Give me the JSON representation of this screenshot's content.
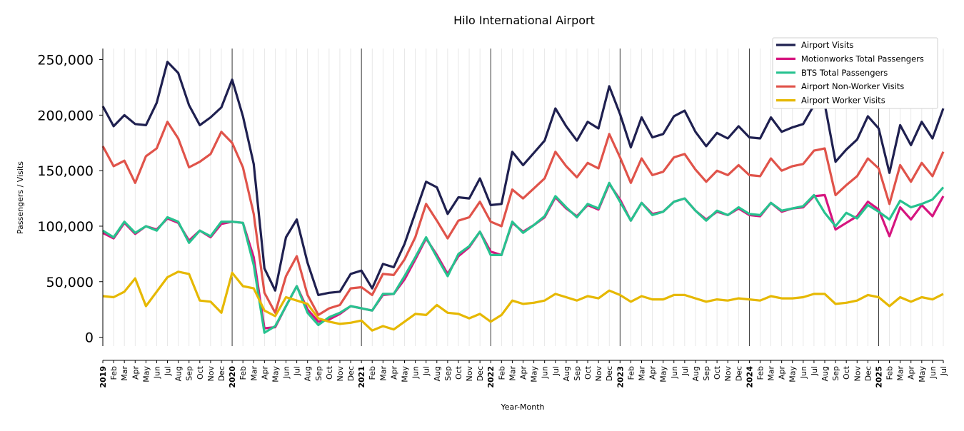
{
  "chart_data": {
    "type": "line",
    "title": "Hilo International Airport",
    "xlabel": "Year-Month",
    "ylabel": "Passengers / Visits",
    "ylim": [
      -8000,
      260000
    ],
    "yticks": [
      0,
      50000,
      100000,
      150000,
      200000,
      250000
    ],
    "ytick_labels": [
      "0",
      "50,000",
      "100,000",
      "150,000",
      "200,000",
      "250,000"
    ],
    "start": {
      "year": 2019,
      "month": 1
    },
    "month_labels": [
      "Jan",
      "Feb",
      "Mar",
      "Apr",
      "May",
      "Jun",
      "Jul",
      "Aug",
      "Sep",
      "Oct",
      "Nov",
      "Dec"
    ],
    "year_labels": [
      "2019",
      "2020",
      "2021",
      "2022",
      "2023",
      "2024",
      "2025"
    ],
    "grid": "vertical monthly lines, dark lines at each January",
    "legend_position": "top-right",
    "series": [
      {
        "name": "Airport Visits",
        "color": "#1f2050",
        "values": [
          208000,
          190000,
          200000,
          192000,
          191000,
          211000,
          248000,
          238000,
          209000,
          191000,
          198000,
          207000,
          232000,
          199000,
          156000,
          62000,
          42000,
          90000,
          106000,
          67000,
          38000,
          40000,
          41000,
          57000,
          60000,
          44000,
          66000,
          63000,
          84000,
          112000,
          140000,
          135000,
          111000,
          126000,
          125000,
          143000,
          119000,
          120000,
          167000,
          155000,
          166000,
          177000,
          206000,
          190000,
          177000,
          194000,
          188000,
          226000,
          201000,
          171000,
          198000,
          180000,
          183000,
          199000,
          204000,
          185000,
          172000,
          184000,
          179000,
          190000,
          180000,
          179000,
          198000,
          185000,
          189000,
          192000,
          209000,
          210000,
          158000,
          169000,
          178000,
          199000,
          188000,
          148000,
          191000,
          173000,
          194000,
          179000,
          206000
        ]
      },
      {
        "name": "Motionworks Total Passengers",
        "color": "#d6157f",
        "values": [
          94000,
          89000,
          103000,
          93000,
          100000,
          97000,
          107000,
          103000,
          87000,
          96000,
          90000,
          102000,
          104000,
          103000,
          72000,
          8000,
          9000,
          28000,
          46000,
          25000,
          14000,
          16000,
          21000,
          28000,
          26000,
          24000,
          38000,
          39000,
          52000,
          70000,
          89000,
          74000,
          57000,
          73000,
          81000,
          95000,
          77000,
          74000,
          103000,
          95000,
          101000,
          108000,
          126000,
          116000,
          109000,
          119000,
          115000,
          138000,
          124000,
          105000,
          121000,
          111000,
          113000,
          122000,
          125000,
          114000,
          106000,
          113000,
          110000,
          116000,
          110000,
          109000,
          121000,
          113000,
          116000,
          117000,
          127000,
          128000,
          97000,
          103000,
          109000,
          122000,
          115000,
          91000,
          117000,
          106000,
          119000,
          109000,
          127000
        ]
      },
      {
        "name": "BTS Total Passengers",
        "color": "#27c28f",
        "values": [
          96000,
          90000,
          104000,
          94000,
          100000,
          96000,
          108000,
          104000,
          85000,
          96000,
          91000,
          104000,
          104000,
          103000,
          65000,
          4000,
          10000,
          28000,
          46000,
          22000,
          11000,
          18000,
          22000,
          28000,
          26000,
          24000,
          39000,
          39000,
          55000,
          72000,
          90000,
          72000,
          55000,
          75000,
          82000,
          95000,
          74000,
          74000,
          104000,
          94000,
          101000,
          109000,
          127000,
          117000,
          108000,
          120000,
          116000,
          139000,
          122000,
          105000,
          121000,
          110000,
          113000,
          122000,
          125000,
          114000,
          105000,
          114000,
          110000,
          117000,
          111000,
          110000,
          121000,
          114000,
          116000,
          118000,
          128000,
          112000,
          100000,
          112000,
          107000,
          119000,
          113000,
          106000,
          123000,
          117000,
          120000,
          124000,
          135000
        ]
      },
      {
        "name": "Airport Non-Worker Visits",
        "color": "#e0534a",
        "values": [
          172000,
          154000,
          159000,
          139000,
          163000,
          170000,
          194000,
          179000,
          153000,
          158000,
          165000,
          185000,
          175000,
          153000,
          111000,
          40000,
          22000,
          55000,
          73000,
          38000,
          20000,
          26000,
          29000,
          44000,
          45000,
          38000,
          57000,
          56000,
          70000,
          90000,
          120000,
          105000,
          89000,
          105000,
          108000,
          122000,
          104000,
          100000,
          133000,
          125000,
          134000,
          143000,
          167000,
          154000,
          144000,
          157000,
          152000,
          183000,
          162000,
          139000,
          161000,
          146000,
          149000,
          162000,
          165000,
          151000,
          140000,
          150000,
          146000,
          155000,
          146000,
          145000,
          161000,
          150000,
          154000,
          156000,
          168000,
          170000,
          128000,
          137000,
          145000,
          161000,
          152000,
          120000,
          155000,
          140000,
          157000,
          145000,
          167000
        ]
      },
      {
        "name": "Airport Worker Visits",
        "color": "#e6b800",
        "values": [
          37000,
          36000,
          41000,
          53000,
          28000,
          41000,
          54000,
          59000,
          57000,
          33000,
          32000,
          22000,
          58000,
          46000,
          44000,
          24000,
          19000,
          36000,
          33000,
          30000,
          17000,
          14000,
          12000,
          13000,
          15000,
          6000,
          10000,
          7000,
          14000,
          21000,
          20000,
          29000,
          22000,
          21000,
          17000,
          21000,
          14000,
          20000,
          33000,
          30000,
          31000,
          33000,
          39000,
          36000,
          33000,
          37000,
          35000,
          42000,
          38000,
          32000,
          37000,
          34000,
          34000,
          38000,
          38000,
          35000,
          32000,
          34000,
          33000,
          35000,
          34000,
          33000,
          37000,
          35000,
          35000,
          36000,
          39000,
          39000,
          30000,
          31000,
          33000,
          38000,
          36000,
          28000,
          36000,
          32000,
          36000,
          34000,
          39000
        ]
      }
    ]
  }
}
